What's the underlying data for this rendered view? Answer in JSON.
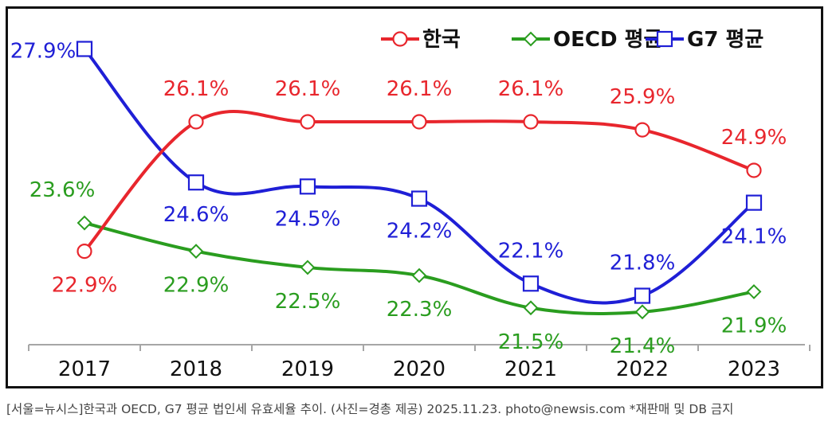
{
  "chart_data": {
    "type": "line",
    "categories": [
      "2017",
      "2018",
      "2019",
      "2020",
      "2021",
      "2022",
      "2023"
    ],
    "series": [
      {
        "name": "한국",
        "values": [
          22.9,
          26.1,
          26.1,
          26.1,
          26.1,
          25.9,
          24.9
        ],
        "labels": [
          "22.9%",
          "26.1%",
          "26.1%",
          "26.1%",
          "26.1%",
          "25.9%",
          "24.9%"
        ],
        "color": "#e8262d",
        "marker": "circle"
      },
      {
        "name": "OECD 평균",
        "values": [
          23.6,
          22.9,
          22.5,
          22.3,
          21.5,
          21.4,
          21.9
        ],
        "labels": [
          "23.6%",
          "22.9%",
          "22.5%",
          "22.3%",
          "21.5%",
          "21.4%",
          "21.9%"
        ],
        "color": "#2a9d1f",
        "marker": "diamond"
      },
      {
        "name": "G7 평균",
        "values": [
          27.9,
          24.6,
          24.5,
          24.2,
          22.1,
          21.8,
          24.1
        ],
        "labels": [
          "27.9%",
          "24.6%",
          "24.5%",
          "24.2%",
          "22.1%",
          "21.8%",
          "24.1%"
        ],
        "color": "#1f1fd6",
        "marker": "square"
      }
    ],
    "ylim": [
      20.0,
      28.5
    ],
    "legend": "top-right",
    "grid": false
  },
  "caption": "[서울=뉴시스]한국과 OECD, G7 평균 법인세 유효세율 추이. (사진=경총 제공) 2025.11.23. photo@newsis.com *재판매 및 DB 금지"
}
